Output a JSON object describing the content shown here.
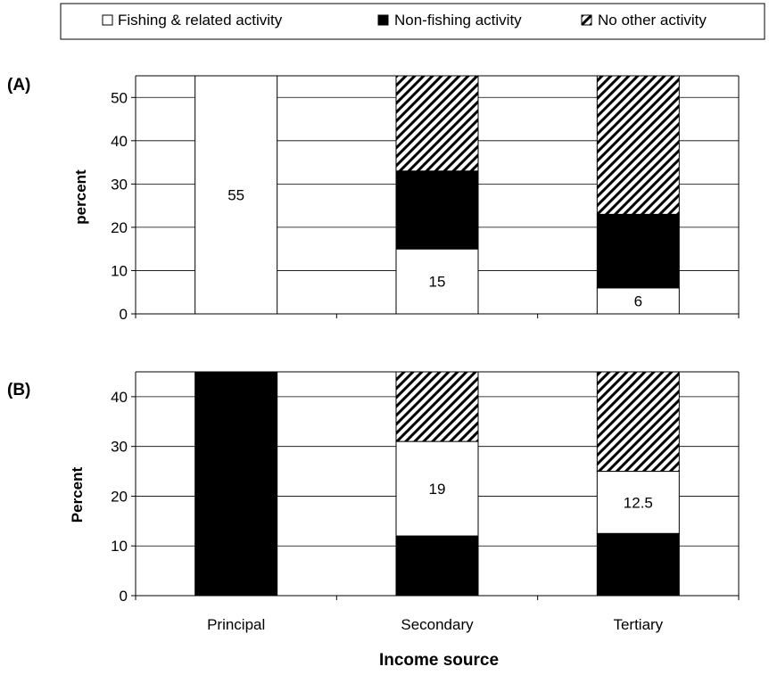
{
  "legend": {
    "items": [
      {
        "label": "Fishing & related activity",
        "key": "fishing"
      },
      {
        "label": "Non-fishing activity",
        "key": "nonfishing"
      },
      {
        "label": "No other activity",
        "key": "none"
      }
    ]
  },
  "colors": {
    "fishing": "#ffffff",
    "nonfishing": "#000000",
    "none_hatch": "#000000",
    "gridline": "#000000",
    "border": "#000000"
  },
  "chart_data": [
    {
      "type": "bar",
      "stacked": true,
      "panel_label": "(A)",
      "ylabel": "percent",
      "xlabel": "",
      "ylim": [
        0,
        55
      ],
      "yticks": [
        0,
        10,
        20,
        30,
        40,
        50
      ],
      "grid": true,
      "categories": [
        "Principal",
        "Secondary",
        "Tertiary"
      ],
      "series": [
        {
          "name": "Fishing & related activity",
          "key": "fishing",
          "values": [
            55,
            15,
            6
          ]
        },
        {
          "name": "Non-fishing activity",
          "key": "nonfishing",
          "values": [
            0,
            18,
            17
          ]
        },
        {
          "name": "No other activity",
          "key": "none",
          "values": [
            0,
            22,
            32
          ]
        }
      ],
      "data_labels": [
        {
          "category": "Principal",
          "series": "fishing",
          "text": "55"
        },
        {
          "category": "Secondary",
          "series": "fishing",
          "text": "15"
        },
        {
          "category": "Tertiary",
          "series": "fishing",
          "text": "6"
        }
      ]
    },
    {
      "type": "bar",
      "stacked": true,
      "panel_label": "(B)",
      "ylabel": "Percent",
      "xlabel": "Income source",
      "ylim": [
        0,
        45
      ],
      "yticks": [
        0,
        10,
        20,
        30,
        40
      ],
      "grid": true,
      "categories": [
        "Principal",
        "Secondary",
        "Tertiary"
      ],
      "series": [
        {
          "name": "Non-fishing activity",
          "key": "nonfishing",
          "values": [
            45,
            12,
            12.5
          ]
        },
        {
          "name": "Fishing & related activity",
          "key": "fishing",
          "values": [
            0,
            19,
            12.5
          ]
        },
        {
          "name": "No other activity",
          "key": "none",
          "values": [
            0,
            14,
            20
          ]
        }
      ],
      "data_labels": [
        {
          "category": "Secondary",
          "series": "fishing",
          "text": "19"
        },
        {
          "category": "Tertiary",
          "series": "fishing",
          "text": "12.5"
        }
      ]
    }
  ]
}
